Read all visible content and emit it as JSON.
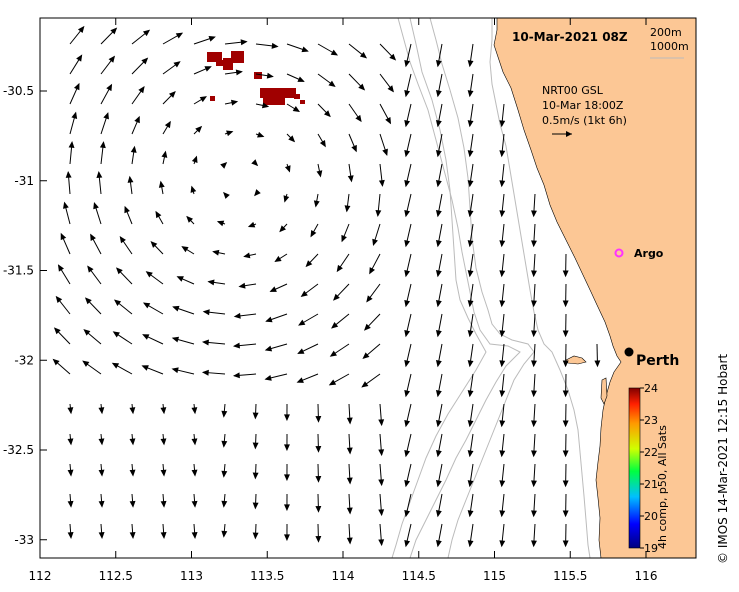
{
  "map": {
    "title": "10-Mar-2021 08Z",
    "lon_ticks": [
      "112",
      "112.5",
      "113",
      "113.5",
      "114",
      "114.5",
      "115",
      "115.5",
      "116"
    ],
    "lat_ticks": [
      "-30.5",
      "-31",
      "-31.5",
      "-32",
      "-32.5",
      "-33"
    ],
    "lon_range": [
      112,
      116.3
    ],
    "lat_range": [
      -33.1,
      -30.05
    ],
    "contour_legend": [
      "200m",
      "1000m"
    ],
    "current_source": "NRT00 GSL",
    "current_time": "10-Mar 18:00Z",
    "current_scale": "0.5m/s (1kt 6h)",
    "places": [
      {
        "name": "Argo",
        "lon": 115.8,
        "lat": -31.4
      },
      {
        "name": "Perth",
        "lon": 115.86,
        "lat": -31.95
      }
    ],
    "colorbar": {
      "min": 19,
      "max": 24,
      "ticks": [
        "24",
        "23",
        "22",
        "21",
        "20",
        "19"
      ],
      "label": "4h comp, p50, All Sats"
    },
    "credit": "© IMOS 14-Mar-2021 12:15 Hobart",
    "colors": {
      "land": "#fcc795",
      "sst_patch": "#a00000",
      "argo": "#ff33ff",
      "contour": "#bbbbbb"
    }
  }
}
